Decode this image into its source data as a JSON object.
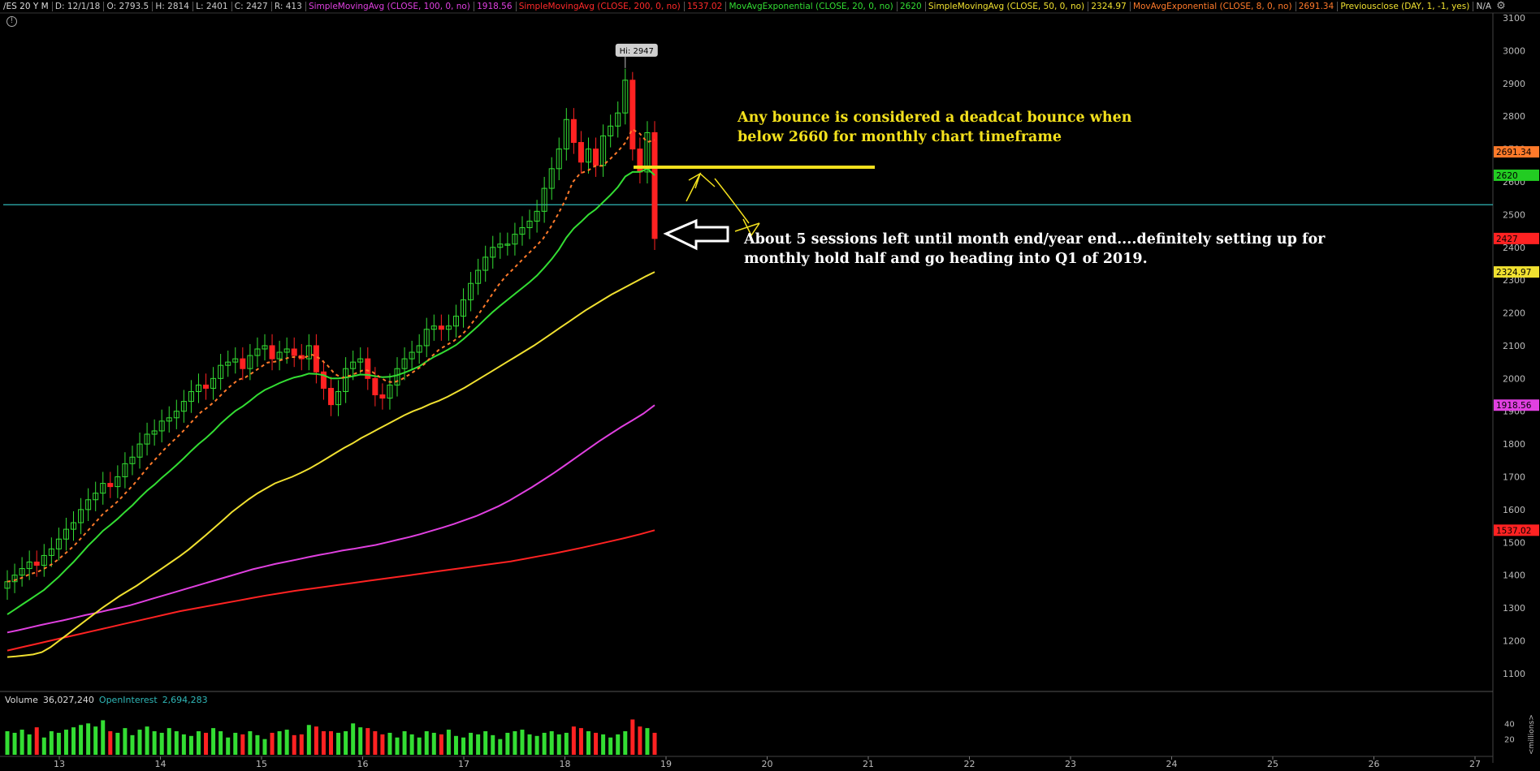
{
  "header": {
    "symbol": "/ES 20 Y M",
    "date": "D: 12/1/18",
    "open": "O: 2793.5",
    "high": "H: 2814",
    "low": "L: 2401",
    "close": "C: 2427",
    "range": "R: 413",
    "studies": [
      {
        "label": "SimpleMovingAvg (CLOSE, 100, 0, no)",
        "value": "1918.56",
        "color": "#e040e0"
      },
      {
        "label": "SimpleMovingAvg (CLOSE, 200, 0, no)",
        "value": "1537.02",
        "color": "#ff2a2a"
      },
      {
        "label": "MovAvgExponential (CLOSE, 20, 0, no)",
        "value": "2620",
        "color": "#33dd33"
      },
      {
        "label": "SimpleMovingAvg (CLOSE, 50, 0, no)",
        "value": "2324.97",
        "color": "#f0e030"
      },
      {
        "label": "MovAvgExponential (CLOSE, 8, 0, no)",
        "value": "2691.34",
        "color": "#ff7a2a"
      },
      {
        "label": "Previousclose (DAY, 1, -1, yes)",
        "value": "N/A",
        "color": "#f0e030"
      }
    ]
  },
  "annotations": {
    "high_marker": "Hi: 2947",
    "note1_line1": "Any bounce is considered a deadcat bounce when",
    "note1_line2": "below 2660 for monthly chart timeframe",
    "note2_line1": "About 5 sessions left until month end/year end....definitely setting up for",
    "note2_line2": "monthly hold half and go heading into Q1 of 2019."
  },
  "volume_panel": {
    "volume_label": "Volume",
    "volume_value": "36,027,240",
    "oi_label": "OpenInterest",
    "oi_value": "2,694,283",
    "unit_label": "<millions>",
    "ticks": [
      "40",
      "20"
    ]
  },
  "price_badges": [
    {
      "value": "2691.34",
      "bg": "#ff7a2a"
    },
    {
      "value": "2620",
      "bg": "#22cc22"
    },
    {
      "value": "2427",
      "bg": "#ff2222"
    },
    {
      "value": "2324.97",
      "bg": "#f0e030"
    },
    {
      "value": "1918.56",
      "bg": "#e040e0"
    },
    {
      "value": "1537.02",
      "bg": "#ff2222"
    }
  ],
  "colors": {
    "up": "#33dd33",
    "down": "#ff2222",
    "teal_line": "#2fb7b7",
    "level_line": "#f3e01d"
  },
  "chart_data": {
    "type": "candlestick",
    "title": "/ES 20 Y M",
    "x_ticks": [
      "13",
      "14",
      "15",
      "16",
      "17",
      "18",
      "19",
      "20",
      "21",
      "22",
      "23",
      "24",
      "25",
      "26",
      "27"
    ],
    "x_tick_years": [
      2013,
      2014,
      2015,
      2016,
      2017,
      2018,
      2019,
      2020,
      2021,
      2022,
      2023,
      2024,
      2025,
      2026,
      2027
    ],
    "y_ticks": [
      1100,
      1200,
      1300,
      1400,
      1500,
      1600,
      1700,
      1800,
      1900,
      2000,
      2100,
      2200,
      2300,
      2400,
      2500,
      2600,
      2700,
      2800,
      2900,
      3000,
      3100
    ],
    "ylim": [
      1055,
      3115
    ],
    "xlim": [
      2012.5,
      2027.3
    ],
    "high": 2947,
    "horizontal_level": 2660,
    "teal_level": 2530,
    "closes": [
      1380,
      1400,
      1420,
      1440,
      1430,
      1460,
      1480,
      1510,
      1540,
      1560,
      1600,
      1630,
      1650,
      1680,
      1670,
      1700,
      1740,
      1760,
      1800,
      1830,
      1840,
      1870,
      1880,
      1900,
      1930,
      1960,
      1980,
      1970,
      2000,
      2040,
      2050,
      2060,
      2030,
      2070,
      2090,
      2100,
      2060,
      2080,
      2090,
      2070,
      2060,
      2100,
      2020,
      1970,
      1920,
      1960,
      2030,
      2050,
      2060,
      2000,
      1950,
      1940,
      1980,
      2030,
      2060,
      2080,
      2100,
      2150,
      2160,
      2150,
      2160,
      2190,
      2240,
      2290,
      2330,
      2370,
      2400,
      2410,
      2410,
      2440,
      2460,
      2480,
      2510,
      2580,
      2640,
      2700,
      2790,
      2720,
      2660,
      2700,
      2650,
      2740,
      2770,
      2810,
      2910,
      2700,
      2630,
      2750,
      2427
    ],
    "ema20": [
      1280,
      1295,
      1310,
      1325,
      1340,
      1355,
      1375,
      1395,
      1418,
      1440,
      1465,
      1490,
      1512,
      1535,
      1553,
      1572,
      1593,
      1613,
      1636,
      1658,
      1676,
      1697,
      1716,
      1736,
      1757,
      1779,
      1800,
      1818,
      1839,
      1862,
      1882,
      1901,
      1915,
      1932,
      1950,
      1965,
      1975,
      1986,
      1995,
      2003,
      2008,
      2015,
      2014,
      2010,
      2000,
      2000,
      2003,
      2007,
      2012,
      2011,
      2007,
      2004,
      2005,
      2010,
      2018,
      2027,
      2037,
      2052,
      2066,
      2077,
      2089,
      2102,
      2120,
      2140,
      2160,
      2182,
      2203,
      2222,
      2240,
      2258,
      2276,
      2294,
      2314,
      2338,
      2364,
      2394,
      2430,
      2458,
      2478,
      2500,
      2516,
      2538,
      2560,
      2584,
      2616,
      2630,
      2630,
      2640,
      2620
    ],
    "sma50": [
      1150,
      1152,
      1155,
      1158,
      1165,
      1180,
      1200,
      1220,
      1240,
      1260,
      1280,
      1300,
      1318,
      1336,
      1352,
      1368,
      1386,
      1404,
      1422,
      1440,
      1458,
      1478,
      1500,
      1522,
      1545,
      1568,
      1592,
      1612,
      1632,
      1650,
      1665,
      1680,
      1690,
      1700,
      1712,
      1725,
      1740,
      1756,
      1772,
      1788,
      1802,
      1818,
      1832,
      1846,
      1860,
      1874,
      1888,
      1900,
      1910,
      1922,
      1932,
      1944,
      1958,
      1972,
      1988,
      2004,
      2020,
      2036,
      2052,
      2068,
      2084,
      2100,
      2118,
      2136,
      2154,
      2172,
      2190,
      2208,
      2224,
      2240,
      2256,
      2270,
      2284,
      2298,
      2312,
      2324.97
    ],
    "sma100": [
      1225,
      1232,
      1240,
      1248,
      1255,
      1262,
      1270,
      1278,
      1285,
      1293,
      1300,
      1308,
      1318,
      1328,
      1338,
      1348,
      1358,
      1368,
      1378,
      1388,
      1398,
      1408,
      1418,
      1426,
      1434,
      1441,
      1448,
      1455,
      1462,
      1468,
      1475,
      1480,
      1486,
      1492,
      1500,
      1508,
      1516,
      1525,
      1535,
      1545,
      1556,
      1568,
      1580,
      1595,
      1610,
      1628,
      1648,
      1668,
      1690,
      1712,
      1736,
      1760,
      1784,
      1808,
      1830,
      1852,
      1872,
      1893,
      1918.56
    ],
    "sma200": [
      1170,
      1180,
      1190,
      1200,
      1210,
      1220,
      1230,
      1240,
      1250,
      1260,
      1270,
      1280,
      1290,
      1298,
      1306,
      1314,
      1322,
      1330,
      1338,
      1345,
      1352,
      1358,
      1364,
      1370,
      1376,
      1382,
      1388,
      1394,
      1400,
      1406,
      1412,
      1418,
      1424,
      1430,
      1436,
      1442,
      1450,
      1458,
      1466,
      1475,
      1484,
      1494,
      1504,
      1514,
      1525,
      1537.02
    ],
    "ema8_start_index": 0,
    "volumes": [
      30,
      28,
      32,
      26,
      35,
      22,
      30,
      28,
      32,
      35,
      38,
      40,
      36,
      44,
      30,
      28,
      34,
      25,
      32,
      36,
      30,
      28,
      34,
      30,
      26,
      24,
      30,
      28,
      34,
      30,
      22,
      28,
      26,
      30,
      25,
      20,
      28,
      30,
      32,
      25,
      26,
      38,
      36,
      30,
      30,
      28,
      30,
      40,
      35,
      34,
      30,
      26,
      28,
      22,
      30,
      26,
      22,
      30,
      28,
      26,
      32,
      24,
      22,
      28,
      26,
      30,
      25,
      20,
      28,
      30,
      32,
      26,
      24,
      28,
      30,
      26,
      28,
      36,
      34,
      30,
      28,
      26,
      22,
      26,
      30,
      45,
      36,
      34,
      28
    ]
  }
}
